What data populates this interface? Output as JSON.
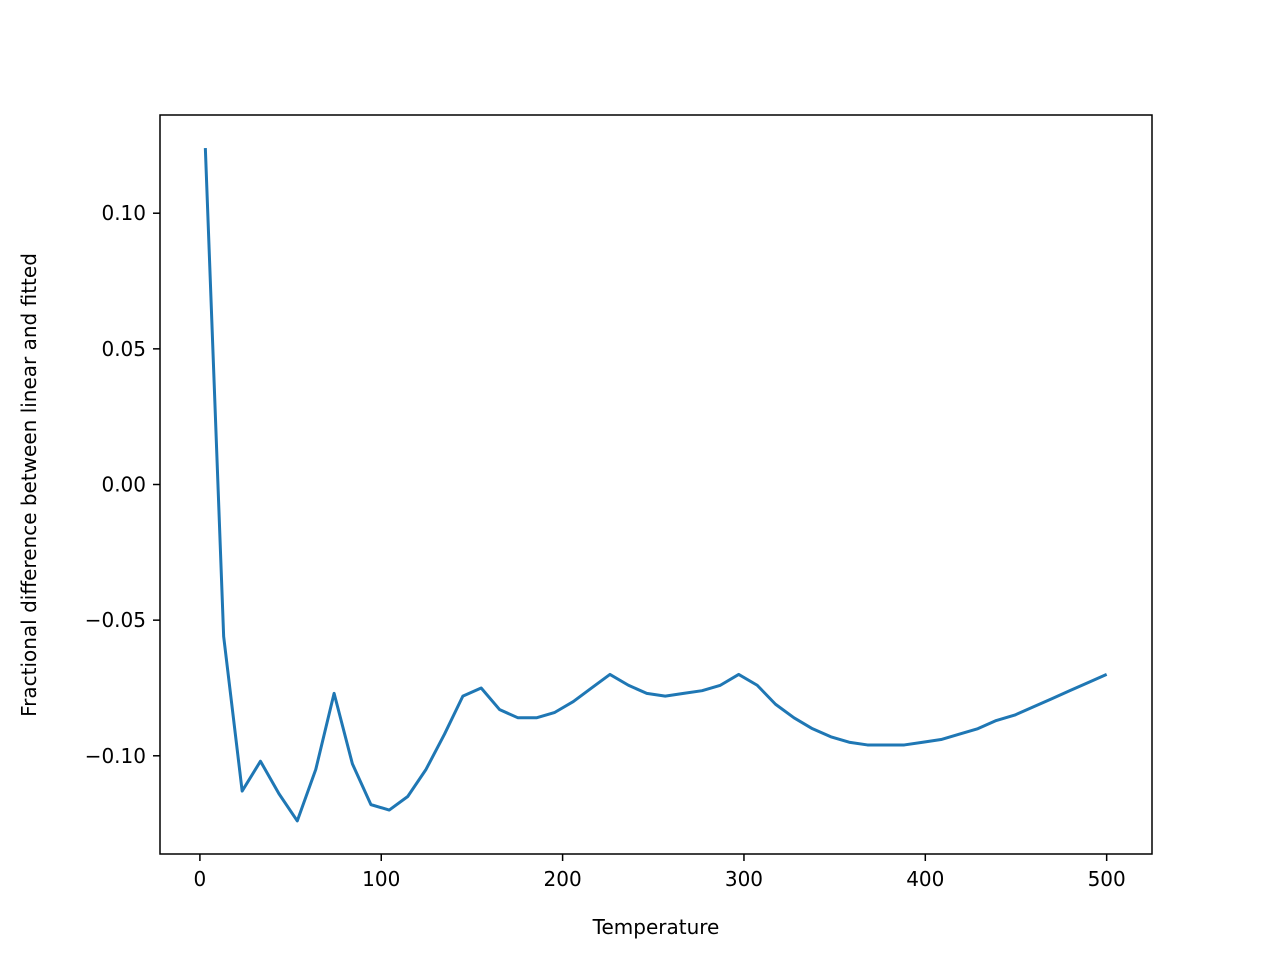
{
  "chart_data": {
    "type": "line",
    "x_label": "Temperature",
    "y_label": "Fractional difference between linear and fitted",
    "x": [
      3,
      13.1,
      23.3,
      33.4,
      43.6,
      53.7,
      63.9,
      74.0,
      84.1,
      94.3,
      104.4,
      114.6,
      124.7,
      134.9,
      145.0,
      155.1,
      165.3,
      175.4,
      185.6,
      195.7,
      205.9,
      216.0,
      226.1,
      236.3,
      246.4,
      256.6,
      266.7,
      276.9,
      287.0,
      297.1,
      307.3,
      317.4,
      327.6,
      337.7,
      347.9,
      358.0,
      368.1,
      378.3,
      388.4,
      398.6,
      408.7,
      418.9,
      429.0,
      439.1,
      449.3,
      459.4,
      469.6,
      479.7,
      489.9,
      500
    ],
    "series": [
      {
        "color": "#1f77b4",
        "values": [
          0.124,
          -0.056,
          -0.113,
          -0.102,
          -0.114,
          -0.124,
          -0.105,
          -0.077,
          -0.103,
          -0.118,
          -0.12,
          -0.115,
          -0.105,
          -0.092,
          -0.078,
          -0.075,
          -0.083,
          -0.086,
          -0.086,
          -0.084,
          -0.08,
          -0.075,
          -0.07,
          -0.074,
          -0.077,
          -0.078,
          -0.077,
          -0.076,
          -0.074,
          -0.07,
          -0.074,
          -0.081,
          -0.086,
          -0.09,
          -0.093,
          -0.095,
          -0.096,
          -0.096,
          -0.096,
          -0.095,
          -0.094,
          -0.092,
          -0.09,
          -0.087,
          -0.085,
          -0.082,
          -0.079,
          -0.076,
          -0.073,
          -0.07
        ]
      }
    ],
    "xlim": [
      -22,
      525
    ],
    "ylim": [
      -0.1362,
      0.1362
    ],
    "xticks": [
      0,
      100,
      200,
      300,
      400,
      500
    ],
    "yticks": [
      {
        "value": -0.1,
        "label": "−0.10"
      },
      {
        "value": -0.05,
        "label": "−0.05"
      },
      {
        "value": 0,
        "label": "0.00"
      },
      {
        "value": 0.05,
        "label": "0.05"
      },
      {
        "value": 0.1,
        "label": "0.10"
      }
    ]
  }
}
